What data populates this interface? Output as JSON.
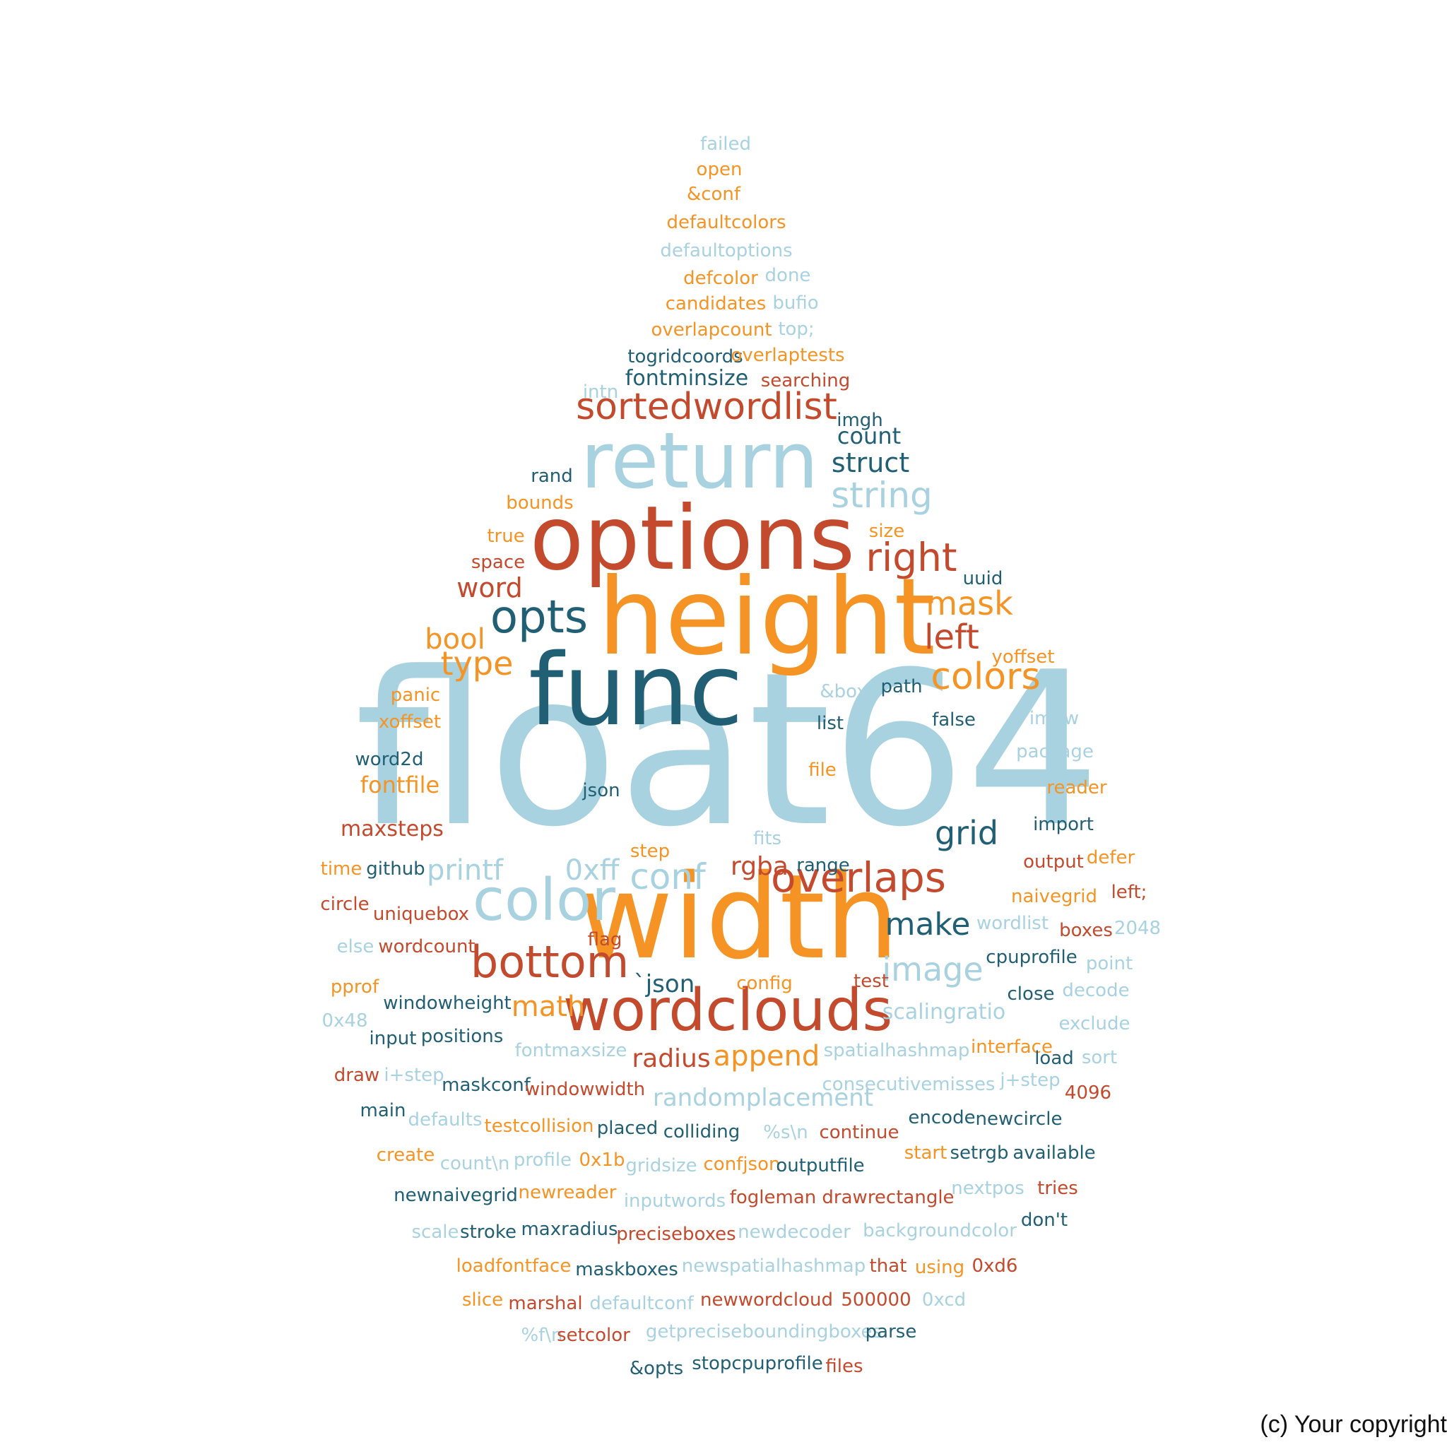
{
  "palette": {
    "lightblue": "#a9d2e0",
    "orange": "#f59424",
    "red": "#c44a2e",
    "teal": "#215f74"
  },
  "copyright": "(c) Your copyright",
  "words": [
    {
      "text": "float64",
      "color": "lightblue"
    },
    {
      "text": "width",
      "color": "orange"
    },
    {
      "text": "height",
      "color": "orange"
    },
    {
      "text": "func",
      "color": "teal"
    },
    {
      "text": "options",
      "color": "red"
    },
    {
      "text": "return",
      "color": "lightblue"
    },
    {
      "text": "wordclouds",
      "color": "red"
    },
    {
      "text": "color",
      "color": "lightblue"
    },
    {
      "text": "bottom",
      "color": "red"
    },
    {
      "text": "opts",
      "color": "teal"
    },
    {
      "text": "overlaps",
      "color": "red"
    },
    {
      "text": "sortedwordlist",
      "color": "red"
    },
    {
      "text": "colors",
      "color": "orange"
    },
    {
      "text": "right",
      "color": "red"
    },
    {
      "text": "string",
      "color": "lightblue"
    },
    {
      "text": "conf",
      "color": "lightblue"
    },
    {
      "text": "image",
      "color": "lightblue"
    },
    {
      "text": "grid",
      "color": "teal"
    },
    {
      "text": "make",
      "color": "teal"
    },
    {
      "text": "mask",
      "color": "orange"
    },
    {
      "text": "left",
      "color": "red"
    },
    {
      "text": "append",
      "color": "orange"
    },
    {
      "text": "type",
      "color": "orange"
    },
    {
      "text": "math",
      "color": "orange"
    },
    {
      "text": "printf",
      "color": "lightblue"
    },
    {
      "text": "0xff",
      "color": "lightblue"
    },
    {
      "text": "struct",
      "color": "teal"
    },
    {
      "text": "word",
      "color": "red"
    },
    {
      "text": "bool",
      "color": "orange"
    },
    {
      "text": "radius",
      "color": "red"
    },
    {
      "text": "randomplacement",
      "color": "lightblue"
    },
    {
      "text": "rgba",
      "color": "red"
    },
    {
      "text": "`json",
      "color": "teal"
    },
    {
      "text": "fontminsize",
      "color": "teal"
    },
    {
      "text": "fontfile",
      "color": "orange"
    },
    {
      "text": "scalingratio",
      "color": "lightblue"
    },
    {
      "text": "count",
      "color": "teal"
    },
    {
      "text": "maxsteps",
      "color": "red"
    },
    {
      "text": "failed",
      "color": "lightblue"
    },
    {
      "text": "open",
      "color": "orange"
    },
    {
      "text": "&conf",
      "color": "orange"
    },
    {
      "text": "defaultcolors",
      "color": "orange"
    },
    {
      "text": "defaultoptions",
      "color": "lightblue"
    },
    {
      "text": "defcolor",
      "color": "orange"
    },
    {
      "text": "done",
      "color": "lightblue"
    },
    {
      "text": "candidates",
      "color": "orange"
    },
    {
      "text": "bufio",
      "color": "lightblue"
    },
    {
      "text": "overlapcount",
      "color": "orange"
    },
    {
      "text": "top;",
      "color": "lightblue"
    },
    {
      "text": "togridcoords",
      "color": "teal"
    },
    {
      "text": "overlaptests",
      "color": "orange"
    },
    {
      "text": "searching",
      "color": "red"
    },
    {
      "text": "intn",
      "color": "lightblue"
    },
    {
      "text": "imgh",
      "color": "teal"
    },
    {
      "text": "rand",
      "color": "teal"
    },
    {
      "text": "bounds",
      "color": "orange"
    },
    {
      "text": "true",
      "color": "orange"
    },
    {
      "text": "size",
      "color": "orange"
    },
    {
      "text": "space",
      "color": "red"
    },
    {
      "text": "uuid",
      "color": "teal"
    },
    {
      "text": "yoffset",
      "color": "orange"
    },
    {
      "text": "panic",
      "color": "orange"
    },
    {
      "text": "&box",
      "color": "lightblue"
    },
    {
      "text": "path",
      "color": "teal"
    },
    {
      "text": "xoffset",
      "color": "orange"
    },
    {
      "text": "list",
      "color": "teal"
    },
    {
      "text": "false",
      "color": "teal"
    },
    {
      "text": "imgw",
      "color": "lightblue"
    },
    {
      "text": "package",
      "color": "lightblue"
    },
    {
      "text": "word2d",
      "color": "teal"
    },
    {
      "text": "file",
      "color": "orange"
    },
    {
      "text": "json",
      "color": "teal"
    },
    {
      "text": "reader",
      "color": "orange"
    },
    {
      "text": "import",
      "color": "teal"
    },
    {
      "text": "fits",
      "color": "lightblue"
    },
    {
      "text": "step",
      "color": "orange"
    },
    {
      "text": "time",
      "color": "orange"
    },
    {
      "text": "github",
      "color": "teal"
    },
    {
      "text": "range",
      "color": "teal"
    },
    {
      "text": "output",
      "color": "red"
    },
    {
      "text": "defer",
      "color": "orange"
    },
    {
      "text": "naivegrid",
      "color": "orange"
    },
    {
      "text": "left;",
      "color": "red"
    },
    {
      "text": "circle",
      "color": "red"
    },
    {
      "text": "uniquebox",
      "color": "red"
    },
    {
      "text": "wordlist",
      "color": "lightblue"
    },
    {
      "text": "boxes",
      "color": "red"
    },
    {
      "text": "2048",
      "color": "lightblue"
    },
    {
      "text": "flag",
      "color": "red"
    },
    {
      "text": "else",
      "color": "lightblue"
    },
    {
      "text": "wordcount",
      "color": "red"
    },
    {
      "text": "cpuprofile",
      "color": "teal"
    },
    {
      "text": "point",
      "color": "lightblue"
    },
    {
      "text": "pprof",
      "color": "orange"
    },
    {
      "text": "config",
      "color": "orange"
    },
    {
      "text": "test",
      "color": "red"
    },
    {
      "text": "close",
      "color": "teal"
    },
    {
      "text": "decode",
      "color": "lightblue"
    },
    {
      "text": "windowheight",
      "color": "teal"
    },
    {
      "text": "0x48",
      "color": "lightblue"
    },
    {
      "text": "exclude",
      "color": "lightblue"
    },
    {
      "text": "input",
      "color": "teal"
    },
    {
      "text": "positions",
      "color": "teal"
    },
    {
      "text": "fontmaxsize",
      "color": "lightblue"
    },
    {
      "text": "spatialhashmap",
      "color": "lightblue"
    },
    {
      "text": "interface",
      "color": "orange"
    },
    {
      "text": "load",
      "color": "teal"
    },
    {
      "text": "sort",
      "color": "lightblue"
    },
    {
      "text": "draw",
      "color": "red"
    },
    {
      "text": "i+step",
      "color": "lightblue"
    },
    {
      "text": "maskconf",
      "color": "teal"
    },
    {
      "text": "windowwidth",
      "color": "red"
    },
    {
      "text": "consecutivemisses",
      "color": "lightblue"
    },
    {
      "text": "j+step",
      "color": "lightblue"
    },
    {
      "text": "4096",
      "color": "red"
    },
    {
      "text": "main",
      "color": "teal"
    },
    {
      "text": "defaults",
      "color": "lightblue"
    },
    {
      "text": "testcollision",
      "color": "orange"
    },
    {
      "text": "placed",
      "color": "teal"
    },
    {
      "text": "colliding",
      "color": "teal"
    },
    {
      "text": "%s\\n",
      "color": "lightblue"
    },
    {
      "text": "continue",
      "color": "red"
    },
    {
      "text": "encode",
      "color": "teal"
    },
    {
      "text": "newcircle",
      "color": "teal"
    },
    {
      "text": "create",
      "color": "orange"
    },
    {
      "text": "count\\n",
      "color": "lightblue"
    },
    {
      "text": "profile",
      "color": "lightblue"
    },
    {
      "text": "0x1b",
      "color": "orange"
    },
    {
      "text": "gridsize",
      "color": "lightblue"
    },
    {
      "text": "confjson",
      "color": "orange"
    },
    {
      "text": "outputfile",
      "color": "teal"
    },
    {
      "text": "start",
      "color": "orange"
    },
    {
      "text": "setrgb",
      "color": "teal"
    },
    {
      "text": "available",
      "color": "teal"
    },
    {
      "text": "newnaivegrid",
      "color": "teal"
    },
    {
      "text": "newreader",
      "color": "orange"
    },
    {
      "text": "inputwords",
      "color": "lightblue"
    },
    {
      "text": "fogleman",
      "color": "red"
    },
    {
      "text": "drawrectangle",
      "color": "red"
    },
    {
      "text": "nextpos",
      "color": "lightblue"
    },
    {
      "text": "tries",
      "color": "red"
    },
    {
      "text": "scale",
      "color": "lightblue"
    },
    {
      "text": "stroke",
      "color": "teal"
    },
    {
      "text": "maxradius",
      "color": "teal"
    },
    {
      "text": "preciseboxes",
      "color": "red"
    },
    {
      "text": "newdecoder",
      "color": "lightblue"
    },
    {
      "text": "backgroundcolor",
      "color": "lightblue"
    },
    {
      "text": "don't",
      "color": "teal"
    },
    {
      "text": "loadfontface",
      "color": "orange"
    },
    {
      "text": "maskboxes",
      "color": "teal"
    },
    {
      "text": "newspatialhashmap",
      "color": "lightblue"
    },
    {
      "text": "that",
      "color": "red"
    },
    {
      "text": "using",
      "color": "orange"
    },
    {
      "text": "0xd6",
      "color": "red"
    },
    {
      "text": "slice",
      "color": "orange"
    },
    {
      "text": "marshal",
      "color": "red"
    },
    {
      "text": "defaultconf",
      "color": "lightblue"
    },
    {
      "text": "newwordcloud",
      "color": "red"
    },
    {
      "text": "500000",
      "color": "red"
    },
    {
      "text": "0xcd",
      "color": "lightblue"
    },
    {
      "text": "%f\\n",
      "color": "lightblue"
    },
    {
      "text": "setcolor",
      "color": "red"
    },
    {
      "text": "getpreciseboundingboxes",
      "color": "lightblue"
    },
    {
      "text": "parse",
      "color": "teal"
    },
    {
      "text": "&opts",
      "color": "teal"
    },
    {
      "text": "stopcpuprofile",
      "color": "teal"
    },
    {
      "text": "files",
      "color": "red"
    }
  ]
}
